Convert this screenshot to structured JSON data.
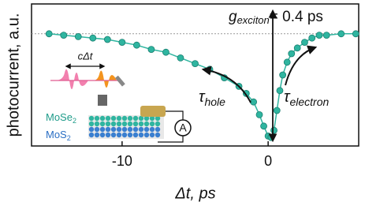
{
  "chart_data": {
    "type": "line",
    "x_label": "Δt, ps",
    "y_label": "photocurrent, a.u.",
    "x": [
      -15,
      -14,
      -13,
      -12,
      -11,
      -10,
      -9,
      -8,
      -7,
      -6,
      -5,
      -4,
      -3,
      -2,
      -1.5,
      -1,
      -0.6,
      -0.3,
      0,
      0.2,
      0.4,
      0.6,
      0.8,
      1.0,
      1.3,
      1.6,
      2,
      2.5,
      3,
      3.5,
      4,
      5,
      6
    ],
    "values": [
      0.79,
      0.78,
      0.77,
      0.76,
      0.75,
      0.73,
      0.71,
      0.68,
      0.66,
      0.62,
      0.58,
      0.54,
      0.48,
      0.42,
      0.37,
      0.31,
      0.22,
      0.14,
      0.07,
      0.06,
      0.11,
      0.25,
      0.39,
      0.5,
      0.59,
      0.65,
      0.69,
      0.73,
      0.76,
      0.78,
      0.78,
      0.79,
      0.79
    ],
    "color": "#2fb5a0",
    "baseline": 0.79,
    "xlim": [
      -16.2,
      6.2
    ],
    "ylim": [
      0,
      1
    ],
    "xticks": [
      -10,
      0
    ],
    "annotations": {
      "exciton": [
        "g",
        "exciton",
        "= 0.4 ps"
      ],
      "hole": [
        "τ",
        "hole"
      ],
      "electron": [
        "τ",
        "electron"
      ]
    },
    "inset": {
      "delay": "cΔt",
      "top_layer": [
        "MoSe",
        "2"
      ],
      "bottom_layer": [
        "MoS",
        "2"
      ],
      "meter": "A"
    }
  }
}
